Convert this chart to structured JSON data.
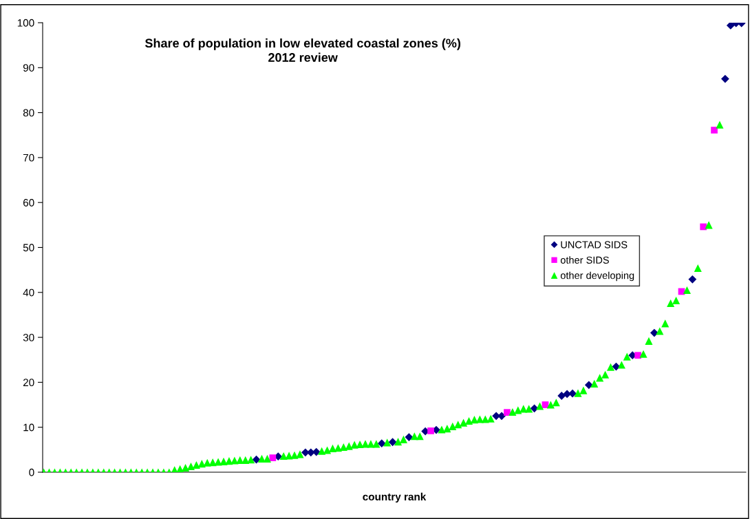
{
  "chart_data": {
    "type": "scatter",
    "title": "Share of population in low elevated coastal zones (%)\n2012 review",
    "xlabel": "country rank",
    "categories": [
      null,
      null,
      null,
      null,
      null,
      null,
      null,
      null,
      null,
      null,
      null,
      null,
      null,
      null,
      null,
      null,
      null,
      null,
      null,
      null,
      null,
      null,
      null,
      null,
      null,
      null,
      null,
      null,
      null,
      null,
      null,
      null,
      null,
      null,
      null,
      null,
      null,
      null,
      null,
      null,
      null,
      null,
      null,
      null,
      null,
      null,
      null,
      null,
      null,
      null,
      null,
      null,
      null,
      null,
      null,
      null,
      null,
      null,
      null,
      null,
      null,
      null,
      null,
      null,
      null,
      null,
      null,
      null,
      null,
      null,
      null,
      null,
      null,
      null,
      null,
      null,
      null,
      null,
      null,
      null,
      null,
      null,
      null,
      null,
      null,
      null,
      null,
      null,
      null,
      null,
      null,
      null,
      null,
      null,
      null,
      null,
      null,
      null,
      null,
      null,
      null,
      null,
      null,
      null,
      null,
      null,
      null,
      null,
      null,
      null,
      null,
      null,
      null,
      null,
      null,
      null,
      null,
      null,
      null,
      null,
      null,
      null,
      null,
      null,
      null,
      null,
      null,
      null,
      null
    ],
    "series": [
      {
        "name": "UNCTAD SIDS",
        "color": "#000080",
        "marker": "diamond",
        "values": [
          null,
          null,
          null,
          null,
          null,
          null,
          null,
          null,
          null,
          null,
          null,
          null,
          null,
          null,
          null,
          null,
          null,
          null,
          null,
          null,
          null,
          null,
          null,
          null,
          null,
          null,
          null,
          null,
          null,
          null,
          null,
          null,
          null,
          null,
          null,
          null,
          null,
          null,
          null,
          2.8,
          null,
          null,
          null,
          3.5,
          null,
          null,
          null,
          null,
          4.4,
          4.4,
          4.5,
          null,
          null,
          null,
          null,
          null,
          null,
          null,
          null,
          null,
          null,
          null,
          6.4,
          null,
          6.7,
          null,
          null,
          7.8,
          null,
          null,
          9.1,
          null,
          9.4,
          null,
          null,
          null,
          null,
          null,
          null,
          null,
          null,
          null,
          null,
          12.5,
          12.5,
          null,
          null,
          null,
          null,
          null,
          14.2,
          null,
          null,
          null,
          null,
          17.0,
          17.4,
          17.5,
          null,
          null,
          19.4,
          null,
          null,
          null,
          null,
          23.5,
          null,
          null,
          26.0,
          null,
          null,
          null,
          31.0,
          null,
          null,
          null,
          null,
          null,
          null,
          42.9,
          null,
          null,
          null,
          null,
          null,
          87.5,
          99.4,
          99.9,
          99.9
        ]
      },
      {
        "name": "other SIDS",
        "color": "#ff00ff",
        "marker": "square",
        "values": [
          null,
          null,
          null,
          null,
          null,
          null,
          null,
          null,
          null,
          null,
          null,
          null,
          null,
          null,
          null,
          null,
          null,
          null,
          null,
          null,
          null,
          null,
          null,
          null,
          null,
          null,
          null,
          null,
          null,
          null,
          null,
          null,
          null,
          null,
          null,
          null,
          null,
          null,
          null,
          null,
          null,
          null,
          3.2,
          null,
          null,
          null,
          null,
          null,
          null,
          null,
          null,
          null,
          null,
          null,
          null,
          null,
          null,
          null,
          null,
          null,
          null,
          null,
          null,
          null,
          null,
          null,
          null,
          null,
          null,
          null,
          null,
          9.2,
          null,
          null,
          null,
          null,
          null,
          null,
          null,
          null,
          null,
          null,
          null,
          null,
          null,
          13.3,
          null,
          null,
          null,
          null,
          null,
          null,
          15.0,
          null,
          null,
          null,
          null,
          null,
          null,
          null,
          null,
          null,
          null,
          null,
          null,
          null,
          null,
          null,
          null,
          26.0,
          null,
          null,
          null,
          null,
          null,
          null,
          null,
          40.2,
          null,
          null,
          null,
          54.6,
          null,
          76.1,
          null,
          null,
          null,
          null,
          null
        ]
      },
      {
        "name": "other developing",
        "color": "#00ff00",
        "marker": "triangle",
        "values": [
          0,
          0,
          0,
          0,
          0,
          0,
          0,
          0,
          0,
          0,
          0,
          0,
          0,
          0,
          0,
          0,
          0,
          0,
          0,
          0,
          0,
          0,
          0,
          0,
          0.5,
          0.7,
          1.0,
          1.3,
          1.6,
          1.9,
          2.1,
          2.2,
          2.3,
          2.4,
          2.5,
          2.6,
          2.7,
          2.7,
          2.8,
          null,
          3.0,
          3.0,
          null,
          null,
          3.6,
          3.7,
          3.8,
          4.0,
          null,
          null,
          null,
          4.7,
          4.9,
          5.3,
          5.4,
          5.6,
          5.8,
          6.1,
          6.2,
          6.3,
          6.3,
          6.3,
          null,
          6.6,
          null,
          6.8,
          7.3,
          null,
          8.0,
          8.0,
          null,
          null,
          null,
          9.5,
          9.7,
          10.2,
          10.6,
          11.0,
          11.4,
          11.7,
          11.8,
          11.8,
          11.9,
          null,
          null,
          null,
          13.4,
          13.8,
          14.1,
          14.1,
          null,
          14.7,
          null,
          15.0,
          15.5,
          null,
          null,
          null,
          17.6,
          18.2,
          null,
          19.7,
          21.0,
          21.7,
          23.4,
          null,
          23.9,
          25.7,
          null,
          null,
          26.3,
          29.2,
          null,
          31.4,
          33.1,
          37.6,
          38.2,
          null,
          40.5,
          null,
          45.4,
          null,
          55.0,
          null,
          77.3,
          null,
          null,
          null,
          null
        ]
      }
    ],
    "ylim": [
      0,
      100
    ],
    "yticks": [
      0,
      10,
      20,
      30,
      40,
      50,
      60,
      70,
      80,
      90,
      100
    ],
    "grid": false,
    "legend": "right"
  }
}
